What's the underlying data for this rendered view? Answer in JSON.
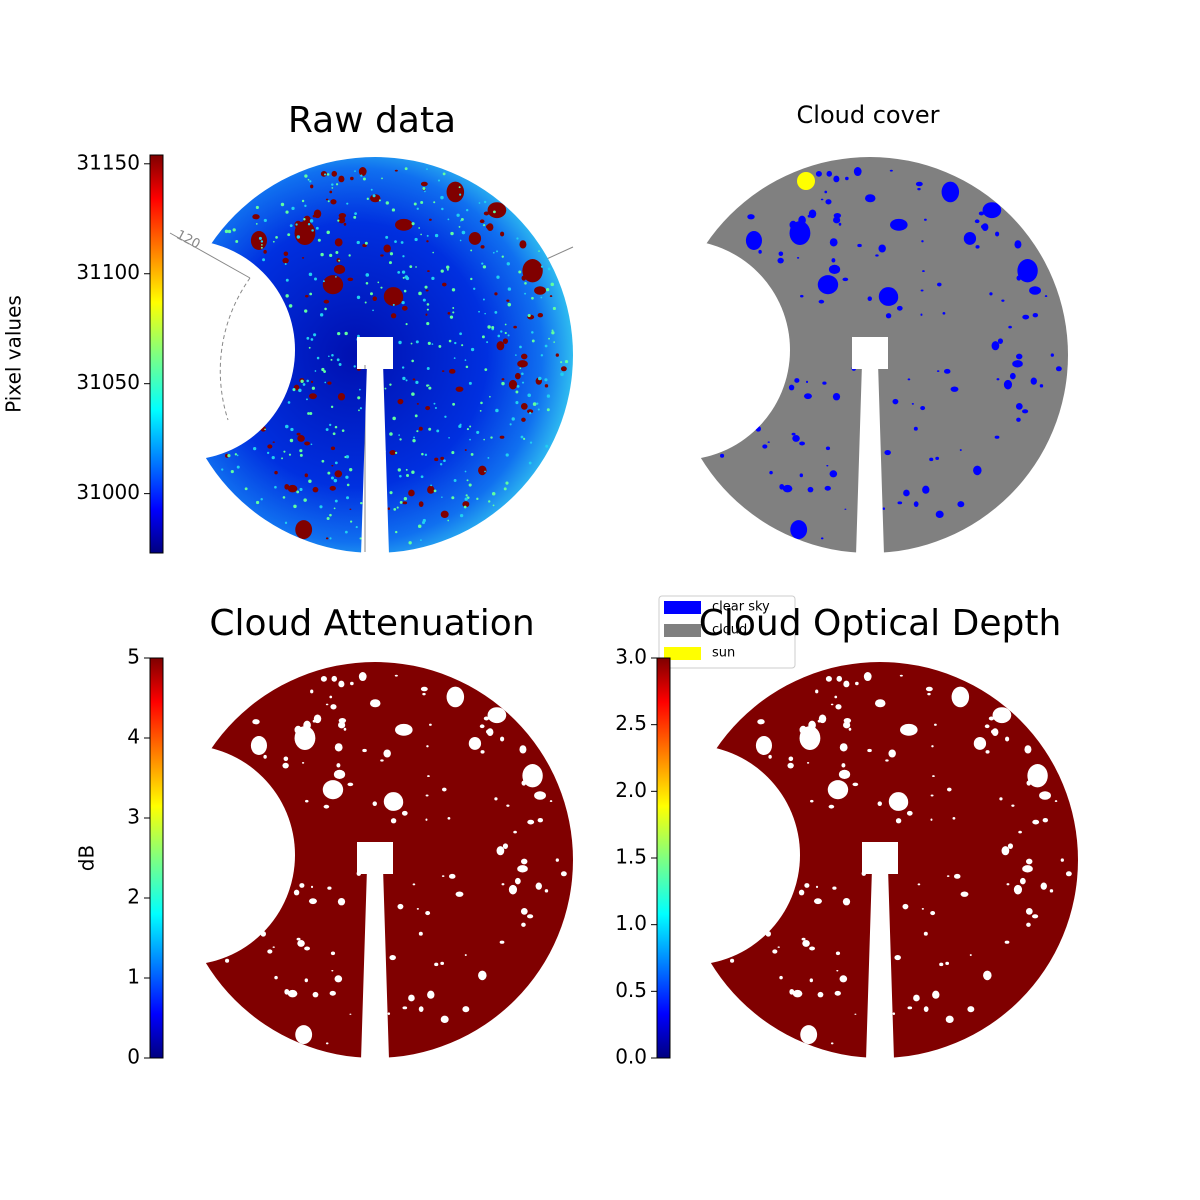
{
  "chart_data": [
    {
      "type": "image",
      "title": "Raw data",
      "colorbar_label": "Pixel values",
      "colormap": "jet",
      "ylim": [
        30973,
        31154
      ],
      "yticks": [
        31000,
        31050,
        31100,
        31150
      ],
      "annotation": "120"
    },
    {
      "type": "image",
      "title": "Cloud cover",
      "series": [
        {
          "name": "clear sky",
          "color": "#0000ff"
        },
        {
          "name": "cloud",
          "color": "#808080"
        },
        {
          "name": "sun",
          "color": "#ffff00"
        }
      ]
    },
    {
      "type": "image",
      "title": "Cloud Attenuation",
      "colorbar_label": "dB",
      "colormap": "jet",
      "ylim": [
        0,
        5
      ],
      "yticks": [
        0,
        1,
        2,
        3,
        4,
        5
      ]
    },
    {
      "type": "image",
      "title": "Cloud Optical Depth",
      "colormap": "jet",
      "ylim": [
        0,
        3
      ],
      "yticks": [
        {
          "value": 0,
          "label": "0.0"
        },
        0.5,
        {
          "value": 1,
          "label": "1.0"
        },
        1.5,
        {
          "value": 2,
          "label": "2.0"
        },
        2.5,
        {
          "value": 3,
          "label": "3.0"
        }
      ]
    }
  ]
}
